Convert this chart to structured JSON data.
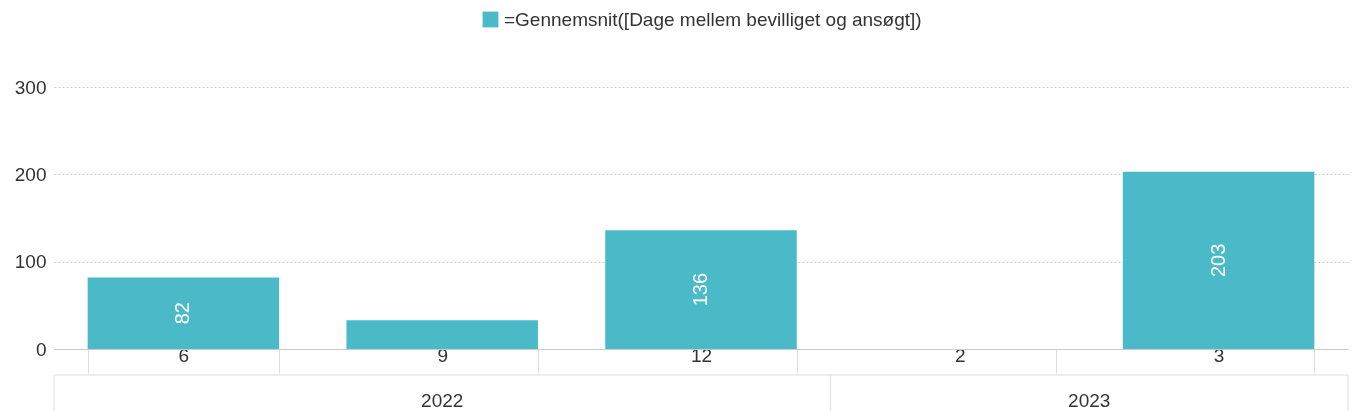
{
  "chart_data": {
    "type": "bar",
    "categories": [
      "6",
      "9",
      "12",
      "2",
      "3"
    ],
    "series": [
      {
        "name": "=Gennemsnit([Dage mellem bevilliget og ansøgt])",
        "color": "#4bbac8",
        "values": [
          82,
          33,
          136,
          null,
          203
        ],
        "value_labels": [
          "82",
          null,
          "136",
          null,
          "203"
        ]
      }
    ],
    "ylim": [
      0,
      300
    ],
    "yticks": [
      0,
      100,
      200,
      300
    ],
    "grid": "y",
    "legend": "top",
    "annotations": [
      "2022",
      "2023"
    ]
  }
}
